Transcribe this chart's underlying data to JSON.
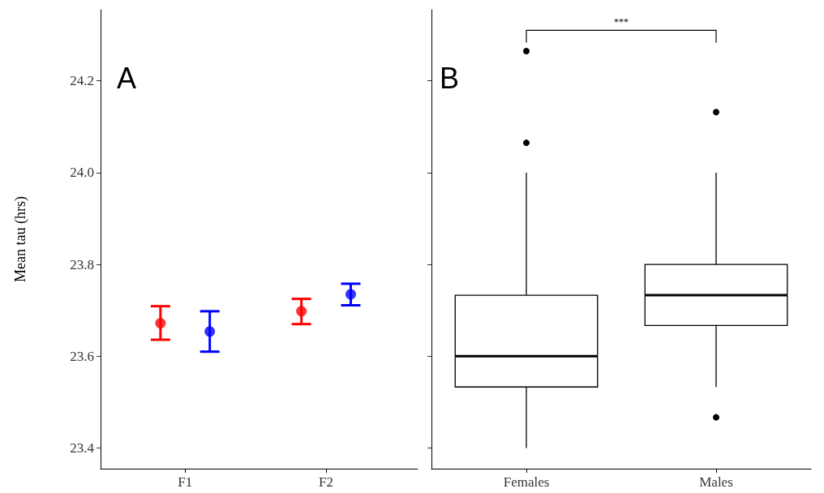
{
  "chart_data": [
    {
      "type": "scatter",
      "ylabel": "Mean tau (hrs)",
      "categories": [
        "F1",
        "F2"
      ],
      "ylim": [
        23.355,
        24.355
      ],
      "yticks": [
        {
          "value": 23.4,
          "label": "23.4"
        },
        {
          "value": 23.6,
          "label": "23.6"
        },
        {
          "value": 23.8,
          "label": "23.8"
        },
        {
          "value": 24.0,
          "label": "24.0"
        },
        {
          "value": 24.2,
          "label": "24.2"
        }
      ],
      "marker": "circle",
      "annotations": [
        "A"
      ],
      "series": [
        {
          "color": "#ff0000",
          "values": [
            23.672,
            23.698
          ],
          "errors": [
            [
              23.636,
              23.709
            ],
            [
              23.67,
              23.725
            ]
          ]
        },
        {
          "color": "#0000ff",
          "values": [
            23.654,
            23.735
          ],
          "errors": [
            [
              23.61,
              23.698
            ],
            [
              23.711,
              23.758
            ]
          ]
        }
      ]
    },
    {
      "type": "box",
      "categories": [
        "Females",
        "Males"
      ],
      "ylim": [
        23.355,
        24.355
      ],
      "yticks": [
        {
          "value": 23.4,
          "label": null
        },
        {
          "value": 23.6,
          "label": null
        },
        {
          "value": 23.8,
          "label": null
        },
        {
          "value": 24.0,
          "label": null
        },
        {
          "value": 24.2,
          "label": null
        }
      ],
      "tick_labels": "x",
      "annotations": [
        "B",
        "***"
      ],
      "boxes": [
        {
          "low": 23.4,
          "q1": 23.533,
          "median": 23.6,
          "q3": 23.733,
          "high": 24.0,
          "outliers": [
            24.065,
            24.265
          ]
        },
        {
          "low": 23.533,
          "q1": 23.667,
          "median": 23.733,
          "q3": 23.8,
          "high": 24.0,
          "outliers": [
            24.132,
            23.467
          ]
        }
      ]
    }
  ]
}
